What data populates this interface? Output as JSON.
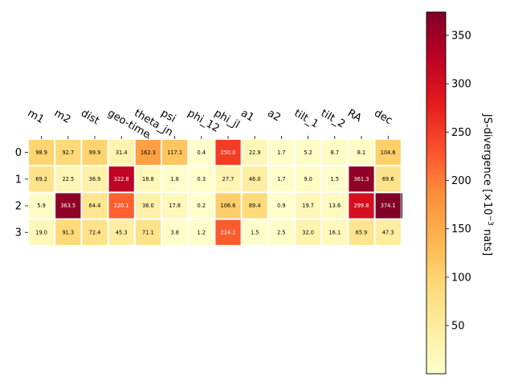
{
  "chart_data": {
    "type": "heatmap",
    "title": "",
    "xlabel": "",
    "ylabel": "",
    "columns": [
      "m1",
      "m2",
      "dist",
      "geo-time",
      "theta_jn",
      "psi",
      "phi_12",
      "phi_jl",
      "a1",
      "a2",
      "tilt_1",
      "tilt_2",
      "RA",
      "dec"
    ],
    "rows": [
      "0",
      "1",
      "2",
      "3"
    ],
    "values": [
      [
        98.9,
        92.7,
        99.9,
        31.4,
        162.3,
        117.1,
        0.4,
        250.0,
        22.9,
        1.7,
        5.2,
        8.7,
        8.1,
        104.6
      ],
      [
        69.2,
        22.5,
        36.9,
        322.8,
        18.8,
        1.8,
        0.3,
        27.7,
        46.0,
        1.7,
        9.0,
        1.5,
        361.3,
        69.6
      ],
      [
        5.9,
        363.5,
        64.4,
        220.1,
        36.0,
        17.8,
        0.2,
        106.6,
        89.4,
        0.9,
        19.7,
        13.6,
        299.8,
        374.1
      ],
      [
        19.0,
        91.3,
        72.4,
        45.3,
        71.1,
        3.8,
        1.2,
        224.2,
        1.5,
        2.5,
        32.0,
        16.1,
        65.9,
        47.3
      ]
    ],
    "labels": [
      [
        "98.9",
        "92.7",
        "99.9",
        "31.4",
        "162.3",
        "117.1",
        "0.4",
        "250.0",
        "22.9",
        "1.7",
        "5.2",
        "8.7",
        "8.1",
        "104.6"
      ],
      [
        "69.2",
        "22.5",
        "36.9",
        "322.8",
        "18.8",
        "1.8",
        "0.3",
        "27.7",
        "46.0",
        "1.7",
        "9.0",
        "1.5",
        "361.3",
        "69.6"
      ],
      [
        "5.9",
        "363.5",
        "64.4",
        "220.1",
        "36.0",
        "17.8",
        "0.2",
        "106.6",
        "89.4",
        "0.9",
        "19.7",
        "13.6",
        "299.8",
        "374.1"
      ],
      [
        "19.0",
        "91.3",
        "72.4",
        "45.3",
        "71.1",
        "3.8",
        "1.2",
        "224.2",
        "1.5",
        "2.5",
        "32.0",
        "16.1",
        "65.9",
        "47.3"
      ]
    ],
    "colormap": "YlOrRd",
    "colorbar": {
      "label_parts": [
        "JS-divergence [×10",
        "−3",
        " nats]"
      ],
      "range": [
        0.2,
        374.1
      ],
      "ticks": [
        50,
        100,
        150,
        200,
        250,
        300,
        350
      ],
      "tick_labels": [
        "50",
        "100",
        "150",
        "200",
        "250",
        "300",
        "350"
      ]
    },
    "grid": false,
    "cell_separator_color": "#ffffff"
  }
}
